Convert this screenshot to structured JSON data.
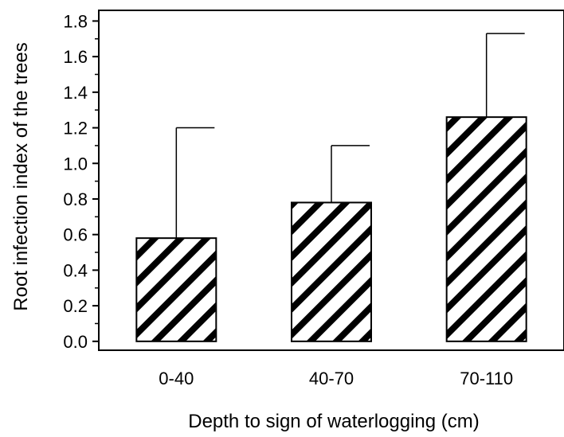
{
  "chart_data": {
    "type": "bar",
    "title": "",
    "xlabel": "Depth to sign of waterlogging (cm)",
    "ylabel": "Root infection index of the trees",
    "categories": [
      "0-40",
      "40-70",
      "70-110"
    ],
    "values": [
      0.58,
      0.78,
      1.26
    ],
    "error_upper": [
      0.62,
      0.32,
      0.47
    ],
    "ylim": [
      -0.05,
      1.86
    ],
    "yticks": [
      "0.0",
      "0.2",
      "0.4",
      "0.6",
      "0.8",
      "1.0",
      "1.2",
      "1.4",
      "1.6",
      "1.8"
    ],
    "ytick_values": [
      0,
      0.2,
      0.4,
      0.6,
      0.8,
      1.0,
      1.2,
      1.4,
      1.6,
      1.8
    ],
    "bar_fill": "diagonal-hatch",
    "colors": {
      "bar_stroke": "#000000",
      "hatch": "#000000",
      "background": "#ffffff"
    },
    "grid": false,
    "legend": "none"
  }
}
